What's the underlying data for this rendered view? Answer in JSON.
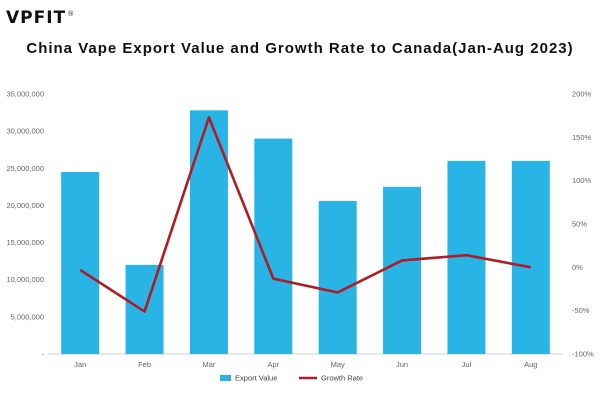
{
  "logo": {
    "text": "VPFIT",
    "registered": "®"
  },
  "colors": {
    "bar": "#29B4E6",
    "line": "#B01C24",
    "axis": "#d0d0d0",
    "text": "#666666"
  },
  "chart_data": {
    "type": "bar",
    "title": "China Vape Export Value and Growth Rate to Canada(Jan-Aug 2023)",
    "xlabel": "",
    "ylabel": "",
    "categories": [
      "Jan",
      "Feb",
      "Mar",
      "Apr",
      "May",
      "Jun",
      "Jul",
      "Aug"
    ],
    "series": [
      {
        "name": "Export Value",
        "type": "bar",
        "axis": "left",
        "values": [
          24500000,
          12000000,
          32800000,
          29000000,
          20600000,
          22500000,
          26000000,
          26000000
        ]
      },
      {
        "name": "Growth Rate",
        "type": "line",
        "axis": "right",
        "unit": "%",
        "values": [
          -3,
          -51,
          173,
          -13,
          -29,
          8,
          14,
          0
        ]
      }
    ],
    "ylim": [
      0,
      35000000
    ],
    "y_ticks": [
      "-",
      "5,000,000",
      "10,000,000",
      "15,000,000",
      "20,000,000",
      "25,000,000",
      "30,000,000",
      "35,000,000"
    ],
    "y2lim": [
      -100,
      200
    ],
    "y2_ticks": [
      "-100%",
      "-50%",
      "0%",
      "50%",
      "100%",
      "150%",
      "200%"
    ],
    "grid": false,
    "legend_position": "bottom-center"
  }
}
